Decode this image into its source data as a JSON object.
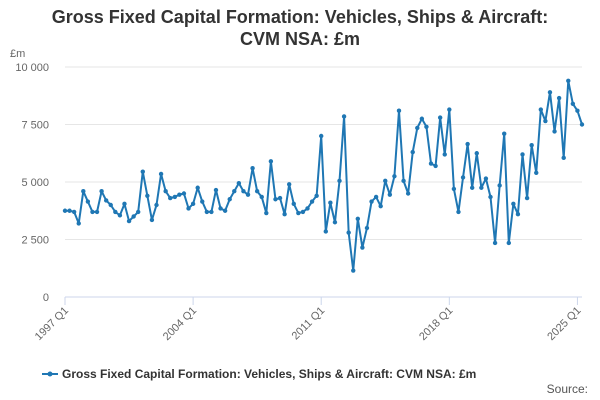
{
  "chart_data": {
    "type": "line",
    "title_lines": [
      "Gross Fixed Capital Formation: Vehicles, Ships & Aircraft:",
      "CVM NSA: £m"
    ],
    "ylabel": "£m",
    "xlabel": "",
    "ylim": [
      0,
      10000
    ],
    "y_ticks": [
      0,
      2500,
      5000,
      7500,
      10000
    ],
    "y_tick_labels": [
      "0",
      "2 500",
      "5 000",
      "7 500",
      "10 000"
    ],
    "x_tick_labels": [
      "1997 Q1",
      "2004 Q1",
      "2011 Q1",
      "2018 Q1",
      "2025 Q1"
    ],
    "x_tick_index": [
      0,
      28,
      56,
      84,
      112
    ],
    "grid": true,
    "legend_position": "bottom",
    "source_label": "Source:",
    "series": [
      {
        "name": "Gross Fixed Capital Formation: Vehicles, Ships & Aircraft: CVM NSA: £m",
        "color": "#1f77b4",
        "values": [
          3750,
          3750,
          3700,
          3200,
          4600,
          4150,
          3700,
          3700,
          4600,
          4200,
          4000,
          3700,
          3550,
          4050,
          3300,
          3500,
          3700,
          5450,
          4400,
          3350,
          4000,
          5350,
          4600,
          4300,
          4350,
          4450,
          4500,
          3850,
          4050,
          4750,
          4150,
          3700,
          3700,
          4650,
          3850,
          3750,
          4250,
          4600,
          4950,
          4600,
          4450,
          5600,
          4600,
          4350,
          3650,
          5900,
          4250,
          4300,
          3600,
          4900,
          4050,
          3650,
          3700,
          3850,
          4150,
          4400,
          7000,
          2850,
          4100,
          3250,
          5050,
          7850,
          2800,
          1150,
          3400,
          2150,
          3000,
          4150,
          4350,
          3950,
          5050,
          4450,
          5250,
          8100,
          5050,
          4500,
          6300,
          7350,
          7750,
          7400,
          5800,
          5700,
          7800,
          6200,
          8150,
          4700,
          3700,
          5200,
          6650,
          4750,
          6250,
          4750,
          5150,
          4350,
          2350,
          4850,
          7100,
          2350,
          4050,
          3600,
          6200,
          4300,
          6600,
          5400,
          8150,
          7650,
          8900,
          7200,
          8650,
          6050,
          9400,
          8400,
          8100,
          7500
        ]
      }
    ]
  }
}
